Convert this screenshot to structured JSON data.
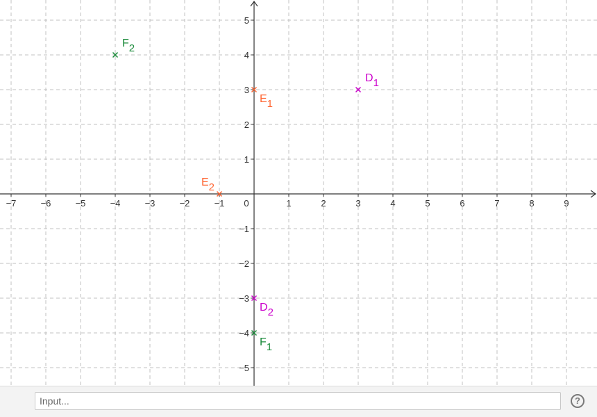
{
  "graphics": {
    "x_ticks": [
      -7,
      -6,
      -5,
      -4,
      -3,
      -2,
      -1,
      0,
      1,
      2,
      3,
      4,
      5,
      6,
      7,
      8,
      9
    ],
    "y_ticks": [
      -5,
      -4,
      -3,
      -2,
      -1,
      1,
      2,
      3,
      4,
      5
    ],
    "x_range": [
      -7.3,
      9.9
    ],
    "y_range": [
      -5.5,
      5.5
    ],
    "grid": true,
    "points": [
      {
        "name": "D",
        "sub": "1",
        "x": 3,
        "y": 3,
        "color": "#cc00cc",
        "label_pos": "upper-right"
      },
      {
        "name": "D",
        "sub": "2",
        "x": 0,
        "y": -3,
        "color": "#cc00cc",
        "label_pos": "lower-right"
      },
      {
        "name": "E",
        "sub": "1",
        "x": 0,
        "y": 3,
        "color": "#ff6633",
        "label_pos": "lower-right"
      },
      {
        "name": "E",
        "sub": "2",
        "x": -1,
        "y": 0,
        "color": "#ff6633",
        "label_pos": "upper-left"
      },
      {
        "name": "F",
        "sub": "1",
        "x": 0,
        "y": -4,
        "color": "#1a8a3a",
        "label_pos": "lower-right"
      },
      {
        "name": "F",
        "sub": "2",
        "x": -4,
        "y": 4,
        "color": "#1a8a3a",
        "label_pos": "upper-right"
      }
    ],
    "colors": {
      "axis": "#333333",
      "grid": "#c0c0c0"
    }
  },
  "input_bar": {
    "placeholder": "Input...",
    "help_label": "?"
  }
}
